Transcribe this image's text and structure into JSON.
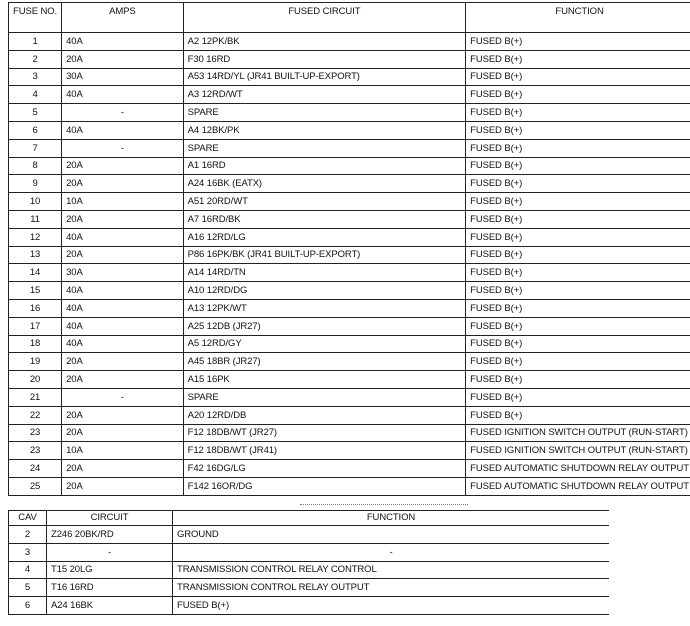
{
  "fuse_table": {
    "headers": {
      "fuse_no": "FUSE NO.",
      "amps": "AMPS",
      "fused_circuit": "FUSED CIRCUIT",
      "function": "FUNCTION"
    },
    "rows": [
      {
        "fuse": "1",
        "amps": "40A",
        "circuit": "A2 12PK/BK",
        "function": "FUSED B(+)"
      },
      {
        "fuse": "2",
        "amps": "20A",
        "circuit": "F30 16RD",
        "function": "FUSED B(+)"
      },
      {
        "fuse": "3",
        "amps": "30A",
        "circuit": "A53 14RD/YL (JR41 BUILT-UP-EXPORT)",
        "function": "FUSED B(+)"
      },
      {
        "fuse": "4",
        "amps": "40A",
        "circuit": "A3 12RD/WT",
        "function": "FUSED B(+)"
      },
      {
        "fuse": "5",
        "amps": "-",
        "circuit": "SPARE",
        "function": "FUSED B(+)"
      },
      {
        "fuse": "6",
        "amps": "40A",
        "circuit": "A4 12BK/PK",
        "function": "FUSED B(+)"
      },
      {
        "fuse": "7",
        "amps": "-",
        "circuit": "SPARE",
        "function": "FUSED B(+)"
      },
      {
        "fuse": "8",
        "amps": "20A",
        "circuit": "A1 16RD",
        "function": "FUSED B(+)"
      },
      {
        "fuse": "9",
        "amps": "20A",
        "circuit": "A24 16BK (EATX)",
        "function": "FUSED B(+)"
      },
      {
        "fuse": "10",
        "amps": "10A",
        "circuit": "A51 20RD/WT",
        "function": "FUSED B(+)"
      },
      {
        "fuse": "11",
        "amps": "20A",
        "circuit": "A7 16RD/BK",
        "function": "FUSED B(+)"
      },
      {
        "fuse": "12",
        "amps": "40A",
        "circuit": "A16 12RD/LG",
        "function": "FUSED B(+)"
      },
      {
        "fuse": "13",
        "amps": "20A",
        "circuit": "P86 16PK/BK (JR41 BUILT-UP-EXPORT)",
        "function": "FUSED B(+)"
      },
      {
        "fuse": "14",
        "amps": "30A",
        "circuit": "A14 14RD/TN",
        "function": "FUSED B(+)"
      },
      {
        "fuse": "15",
        "amps": "40A",
        "circuit": "A10 12RD/DG",
        "function": "FUSED B(+)"
      },
      {
        "fuse": "16",
        "amps": "40A",
        "circuit": "A13 12PK/WT",
        "function": "FUSED B(+)"
      },
      {
        "fuse": "17",
        "amps": "40A",
        "circuit": "A25 12DB (JR27)",
        "function": "FUSED B(+)"
      },
      {
        "fuse": "18",
        "amps": "40A",
        "circuit": "A5 12RD/GY",
        "function": "FUSED B(+)"
      },
      {
        "fuse": "19",
        "amps": "20A",
        "circuit": "A45 18BR (JR27)",
        "function": "FUSED B(+)"
      },
      {
        "fuse": "20",
        "amps": "20A",
        "circuit": "A15 16PK",
        "function": "FUSED B(+)"
      },
      {
        "fuse": "21",
        "amps": "-",
        "circuit": "SPARE",
        "function": "FUSED B(+)"
      },
      {
        "fuse": "22",
        "amps": "20A",
        "circuit": "A20 12RD/DB",
        "function": "FUSED B(+)"
      },
      {
        "fuse": "23",
        "amps": "20A",
        "circuit": "F12 18DB/WT (JR27)",
        "function": "FUSED IGNITION SWITCH OUTPUT (RUN-START)"
      },
      {
        "fuse": "23",
        "amps": "10A",
        "circuit": "F12 18DB/WT (JR41)",
        "function": "FUSED IGNITION SWITCH OUTPUT (RUN-START)"
      },
      {
        "fuse": "24",
        "amps": "20A",
        "circuit": "F42 16DG/LG",
        "function": "FUSED AUTOMATIC SHUTDOWN RELAY OUTPUT"
      },
      {
        "fuse": "25",
        "amps": "20A",
        "circuit": "F142 16OR/DG",
        "function": "FUSED AUTOMATIC SHUTDOWN RELAY OUTPUT"
      }
    ]
  },
  "cav_table": {
    "headers": {
      "cav": "CAV",
      "circuit": "CIRCUIT",
      "function": "FUNCTION"
    },
    "rows": [
      {
        "cav": "2",
        "circuit": "Z246 20BK/RD",
        "function": "GROUND"
      },
      {
        "cav": "3",
        "circuit": "-",
        "function": "-"
      },
      {
        "cav": "4",
        "circuit": "T15 20LG",
        "function": "TRANSMISSION CONTROL RELAY CONTROL"
      },
      {
        "cav": "5",
        "circuit": "T16 16RD",
        "function": "TRANSMISSION CONTROL RELAY OUTPUT"
      },
      {
        "cav": "6",
        "circuit": "A24 16BK",
        "function": "FUSED B(+)"
      }
    ]
  }
}
